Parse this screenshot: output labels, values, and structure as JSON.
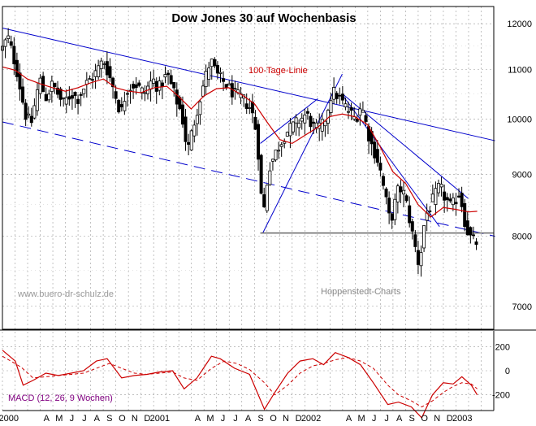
{
  "chart_data": {
    "type": "candlestick",
    "title": "Dow Jones 30 auf Wochenbasis",
    "annotations": {
      "ma_label": "100-Tage-Linie",
      "watermark": "www.buero-dr-schulz.de",
      "source": "Hoppenstedt-Charts",
      "macd_label": "MACD (12, 26, 9 Wochen)"
    },
    "price_axis": {
      "scale": "log",
      "range": [
        6700,
        12400
      ],
      "ticks": [
        {
          "v": 12000,
          "label": "12000"
        },
        {
          "v": 11000,
          "label": "11000"
        },
        {
          "v": 10000,
          "label": "10000"
        },
        {
          "v": 9000,
          "label": "9000"
        },
        {
          "v": 8000,
          "label": "8000"
        },
        {
          "v": 7000,
          "label": "7000"
        }
      ]
    },
    "macd_axis": {
      "range": [
        -330,
        330
      ],
      "ticks": [
        {
          "v": 200,
          "label": "200"
        },
        {
          "v": 0,
          "label": "0"
        },
        {
          "v": -200,
          "label": "-200"
        }
      ]
    },
    "time_axis": {
      "start": "2000-01",
      "end": "2003-04",
      "labels": [
        {
          "m": 0,
          "t": "2000"
        },
        {
          "m": 3,
          "t": "A"
        },
        {
          "m": 4,
          "t": "M"
        },
        {
          "m": 5,
          "t": "J"
        },
        {
          "m": 6,
          "t": "J"
        },
        {
          "m": 7,
          "t": "A"
        },
        {
          "m": 8,
          "t": "S"
        },
        {
          "m": 9,
          "t": "O"
        },
        {
          "m": 10,
          "t": "N"
        },
        {
          "m": 11,
          "t": "D"
        },
        {
          "m": 12,
          "t": "2001"
        },
        {
          "m": 15,
          "t": "A"
        },
        {
          "m": 16,
          "t": "M"
        },
        {
          "m": 17,
          "t": "J"
        },
        {
          "m": 18,
          "t": "J"
        },
        {
          "m": 19,
          "t": "A"
        },
        {
          "m": 20,
          "t": "S"
        },
        {
          "m": 21,
          "t": "O"
        },
        {
          "m": 22,
          "t": "N"
        },
        {
          "m": 23,
          "t": "D"
        },
        {
          "m": 24,
          "t": "2002"
        },
        {
          "m": 27,
          "t": "A"
        },
        {
          "m": 28,
          "t": "M"
        },
        {
          "m": 29,
          "t": "J"
        },
        {
          "m": 30,
          "t": "J"
        },
        {
          "m": 31,
          "t": "A"
        },
        {
          "m": 32,
          "t": "S"
        },
        {
          "m": 33,
          "t": "O"
        },
        {
          "m": 34,
          "t": "N"
        },
        {
          "m": 35,
          "t": "D"
        },
        {
          "m": 36,
          "t": "2003"
        }
      ]
    },
    "close_path": [
      [
        "2000-01-01",
        11450
      ],
      [
        "2000-01-14",
        11700
      ],
      [
        "2000-02-04",
        11000
      ],
      [
        "2000-02-25",
        10100
      ],
      [
        "2000-03-10",
        9900
      ],
      [
        "2000-03-31",
        10800
      ],
      [
        "2000-04-14",
        10400
      ],
      [
        "2000-05-01",
        10700
      ],
      [
        "2000-05-26",
        10300
      ],
      [
        "2000-06-16",
        10500
      ],
      [
        "2000-07-01",
        10400
      ],
      [
        "2000-07-21",
        10700
      ],
      [
        "2000-08-11",
        10900
      ],
      [
        "2000-09-01",
        11200
      ],
      [
        "2000-09-22",
        10700
      ],
      [
        "2000-10-13",
        10100
      ],
      [
        "2000-10-27",
        10600
      ],
      [
        "2000-11-17",
        10700
      ],
      [
        "2000-12-08",
        10500
      ],
      [
        "2000-12-29",
        10800
      ],
      [
        "2001-01-12",
        10600
      ],
      [
        "2001-02-02",
        10900
      ],
      [
        "2001-02-23",
        10400
      ],
      [
        "2001-03-09",
        10100
      ],
      [
        "2001-03-23",
        9400
      ],
      [
        "2001-04-13",
        10100
      ],
      [
        "2001-05-04",
        10800
      ],
      [
        "2001-05-18",
        11200
      ],
      [
        "2001-06-01",
        10900
      ],
      [
        "2001-06-22",
        10700
      ],
      [
        "2001-07-13",
        10500
      ],
      [
        "2001-08-03",
        10400
      ],
      [
        "2001-08-24",
        10200
      ],
      [
        "2001-09-07",
        9700
      ],
      [
        "2001-09-21",
        8250
      ],
      [
        "2001-10-05",
        9100
      ],
      [
        "2001-10-26",
        9450
      ],
      [
        "2001-11-16",
        9750
      ],
      [
        "2001-12-07",
        9900
      ],
      [
        "2002-01-04",
        10100
      ],
      [
        "2002-01-25",
        9800
      ],
      [
        "2002-02-15",
        9900
      ],
      [
        "2002-03-08",
        10550
      ],
      [
        "2002-03-22",
        10450
      ],
      [
        "2002-04-12",
        10200
      ],
      [
        "2002-05-03",
        10000
      ],
      [
        "2002-05-17",
        10300
      ],
      [
        "2002-06-07",
        9600
      ],
      [
        "2002-06-28",
        9200
      ],
      [
        "2002-07-12",
        8700
      ],
      [
        "2002-07-26",
        8200
      ],
      [
        "2002-08-16",
        8800
      ],
      [
        "2002-08-30",
        8650
      ],
      [
        "2002-09-20",
        7950
      ],
      [
        "2002-10-04",
        7550
      ],
      [
        "2002-10-18",
        8300
      ],
      [
        "2002-11-01",
        8500
      ],
      [
        "2002-11-22",
        8800
      ],
      [
        "2002-12-06",
        8600
      ],
      [
        "2002-12-20",
        8450
      ],
      [
        "2003-01-10",
        8700
      ],
      [
        "2003-01-24",
        8150
      ],
      [
        "2003-02-07",
        7950
      ],
      [
        "2003-02-21",
        7900
      ]
    ],
    "ma100_path": [
      [
        "2000-01-01",
        11050
      ],
      [
        "2000-02-01",
        10980
      ],
      [
        "2000-03-01",
        10800
      ],
      [
        "2000-04-01",
        10700
      ],
      [
        "2000-05-01",
        10620
      ],
      [
        "2000-06-01",
        10550
      ],
      [
        "2000-07-01",
        10620
      ],
      [
        "2000-08-01",
        10720
      ],
      [
        "2000-09-01",
        10800
      ],
      [
        "2000-10-01",
        10620
      ],
      [
        "2000-11-01",
        10550
      ],
      [
        "2000-12-01",
        10520
      ],
      [
        "2001-01-01",
        10620
      ],
      [
        "2001-02-01",
        10650
      ],
      [
        "2001-03-01",
        10450
      ],
      [
        "2001-04-01",
        10200
      ],
      [
        "2001-05-01",
        10450
      ],
      [
        "2001-06-01",
        10600
      ],
      [
        "2001-07-01",
        10620
      ],
      [
        "2001-08-01",
        10480
      ],
      [
        "2001-09-01",
        10300
      ],
      [
        "2001-10-01",
        9950
      ],
      [
        "2001-11-01",
        9620
      ],
      [
        "2001-12-01",
        9550
      ],
      [
        "2002-01-01",
        9700
      ],
      [
        "2002-02-01",
        9850
      ],
      [
        "2002-03-01",
        10050
      ],
      [
        "2002-04-01",
        10100
      ],
      [
        "2002-05-01",
        10050
      ],
      [
        "2002-06-01",
        9900
      ],
      [
        "2002-07-01",
        9500
      ],
      [
        "2002-08-01",
        9050
      ],
      [
        "2002-09-01",
        8850
      ],
      [
        "2002-10-01",
        8500
      ],
      [
        "2002-11-01",
        8300
      ],
      [
        "2002-12-01",
        8450
      ],
      [
        "2003-01-01",
        8420
      ],
      [
        "2003-02-01",
        8380
      ],
      [
        "2003-02-21",
        8390
      ]
    ],
    "macd_line": [
      [
        "2000-01-01",
        170
      ],
      [
        "2000-02-01",
        80
      ],
      [
        "2000-02-20",
        -120
      ],
      [
        "2000-03-15",
        -80
      ],
      [
        "2000-04-15",
        -20
      ],
      [
        "2000-05-15",
        -40
      ],
      [
        "2000-06-15",
        -20
      ],
      [
        "2000-07-15",
        0
      ],
      [
        "2000-08-15",
        80
      ],
      [
        "2000-09-10",
        100
      ],
      [
        "2000-10-15",
        -60
      ],
      [
        "2000-11-15",
        -40
      ],
      [
        "2000-12-15",
        -30
      ],
      [
        "2001-01-15",
        -10
      ],
      [
        "2001-02-15",
        0
      ],
      [
        "2001-03-15",
        -150
      ],
      [
        "2001-04-15",
        -60
      ],
      [
        "2001-05-20",
        120
      ],
      [
        "2001-06-10",
        100
      ],
      [
        "2001-07-15",
        20
      ],
      [
        "2001-08-20",
        -30
      ],
      [
        "2001-09-25",
        -320
      ],
      [
        "2001-10-20",
        -180
      ],
      [
        "2001-11-20",
        -20
      ],
      [
        "2001-12-20",
        80
      ],
      [
        "2002-01-20",
        100
      ],
      [
        "2002-02-15",
        50
      ],
      [
        "2002-03-15",
        150
      ],
      [
        "2002-04-15",
        110
      ],
      [
        "2002-05-15",
        50
      ],
      [
        "2002-06-15",
        -100
      ],
      [
        "2002-07-20",
        -280
      ],
      [
        "2002-08-15",
        -260
      ],
      [
        "2002-09-15",
        -300
      ],
      [
        "2002-10-10",
        -390
      ],
      [
        "2002-11-05",
        -200
      ],
      [
        "2002-12-01",
        -100
      ],
      [
        "2002-12-25",
        -110
      ],
      [
        "2003-01-15",
        -50
      ],
      [
        "2003-02-07",
        -120
      ],
      [
        "2003-02-21",
        -200
      ]
    ],
    "macd_signal": [
      [
        "2000-01-01",
        120
      ],
      [
        "2000-02-15",
        30
      ],
      [
        "2000-03-15",
        -60
      ],
      [
        "2000-04-15",
        -50
      ],
      [
        "2000-05-15",
        -40
      ],
      [
        "2000-06-15",
        -30
      ],
      [
        "2000-07-15",
        -20
      ],
      [
        "2000-08-15",
        20
      ],
      [
        "2000-09-15",
        60
      ],
      [
        "2000-10-15",
        20
      ],
      [
        "2000-11-15",
        -20
      ],
      [
        "2000-12-15",
        -30
      ],
      [
        "2001-01-15",
        -20
      ],
      [
        "2001-02-15",
        -10
      ],
      [
        "2001-03-15",
        -60
      ],
      [
        "2001-04-15",
        -80
      ],
      [
        "2001-05-20",
        20
      ],
      [
        "2001-06-20",
        80
      ],
      [
        "2001-07-20",
        60
      ],
      [
        "2001-08-20",
        10
      ],
      [
        "2001-09-25",
        -100
      ],
      [
        "2001-10-20",
        -200
      ],
      [
        "2001-11-20",
        -120
      ],
      [
        "2001-12-20",
        -20
      ],
      [
        "2002-01-20",
        40
      ],
      [
        "2002-02-15",
        60
      ],
      [
        "2002-03-15",
        90
      ],
      [
        "2002-04-15",
        110
      ],
      [
        "2002-05-15",
        80
      ],
      [
        "2002-06-15",
        20
      ],
      [
        "2002-07-20",
        -120
      ],
      [
        "2002-08-15",
        -200
      ],
      [
        "2002-09-15",
        -250
      ],
      [
        "2002-10-10",
        -300
      ],
      [
        "2002-11-05",
        -250
      ],
      [
        "2002-12-01",
        -180
      ],
      [
        "2002-12-25",
        -130
      ],
      [
        "2003-01-15",
        -100
      ],
      [
        "2003-02-07",
        -110
      ],
      [
        "2003-02-21",
        -150
      ]
    ],
    "trend_lines": [
      {
        "name": "long-term downtrend top",
        "style": "solid",
        "color": "#0000cc",
        "from": [
          "2000-01-01",
          11900
        ],
        "to": [
          "2003-04-05",
          9600
        ]
      },
      {
        "name": "long-term downtrend bottom",
        "style": "dashed",
        "color": "#0000cc",
        "from": [
          "2000-01-01",
          9950
        ],
        "to": [
          "2003-04-05",
          8000
        ]
      },
      {
        "name": "2001 rally support",
        "style": "solid",
        "color": "#0000cc",
        "from": [
          "2001-09-21",
          8050
        ],
        "to": [
          "2002-04-01",
          10900
        ]
      },
      {
        "name": "2001 rally outer support",
        "style": "solid",
        "color": "#0000cc",
        "from": [
          "2001-09-15",
          9550
        ],
        "to": [
          "2002-02-01",
          10400
        ]
      },
      {
        "name": "2002 downtrend",
        "style": "solid",
        "color": "#0000cc",
        "from": [
          "2002-04-01",
          10480
        ],
        "to": [
          "2002-11-22",
          8150
        ]
      },
      {
        "name": "2002 downtrend outer",
        "style": "solid",
        "color": "#0000cc",
        "from": [
          "2002-04-01",
          10500
        ],
        "to": [
          "2003-01-30",
          8600
        ]
      },
      {
        "name": "support line",
        "style": "solid",
        "color": "#666666",
        "from": [
          "2001-09-15",
          8050
        ],
        "to": [
          "2003-04-01",
          8050
        ]
      }
    ],
    "grid": true,
    "colors": {
      "candles": "#000000",
      "ma": "#cc0000",
      "trend": "#0000cc",
      "macd": "#cc0000",
      "signal": "#cc0000",
      "grid": "#999999"
    }
  }
}
